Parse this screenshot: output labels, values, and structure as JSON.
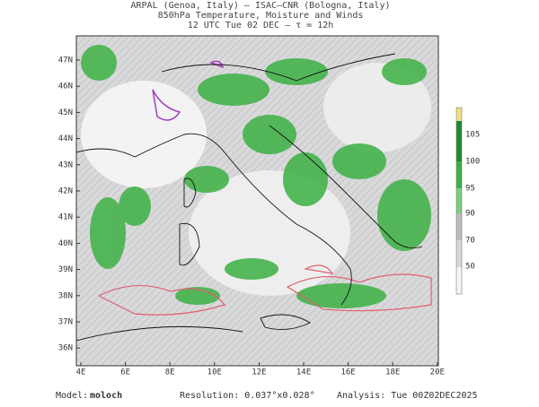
{
  "header": {
    "line1": "ARPAL (Genoa, Italy)  –  ISAC–CNR (Bologna, Italy)",
    "line2": "850hPa Temperature, Moisture and Winds",
    "line3": "12 UTC Tue 02 DEC  –  τ = 12h"
  },
  "map": {
    "lat_labels": [
      "47N",
      "46N",
      "45N",
      "44N",
      "43N",
      "42N",
      "41N",
      "40N",
      "39N",
      "38N",
      "37N",
      "36N"
    ],
    "lon_labels": [
      "4E",
      "6E",
      "8E",
      "10E",
      "12E",
      "14E",
      "16E",
      "18E",
      "20E"
    ]
  },
  "colorbar": {
    "labels": [
      105,
      100,
      95,
      90,
      70,
      50
    ]
  },
  "footer": {
    "model_label": "Model:",
    "model": "moloch",
    "resolution": "Resolution: 0.037°x0.028°",
    "analysis": "Analysis: Tue 00Z02DEC2025"
  }
}
